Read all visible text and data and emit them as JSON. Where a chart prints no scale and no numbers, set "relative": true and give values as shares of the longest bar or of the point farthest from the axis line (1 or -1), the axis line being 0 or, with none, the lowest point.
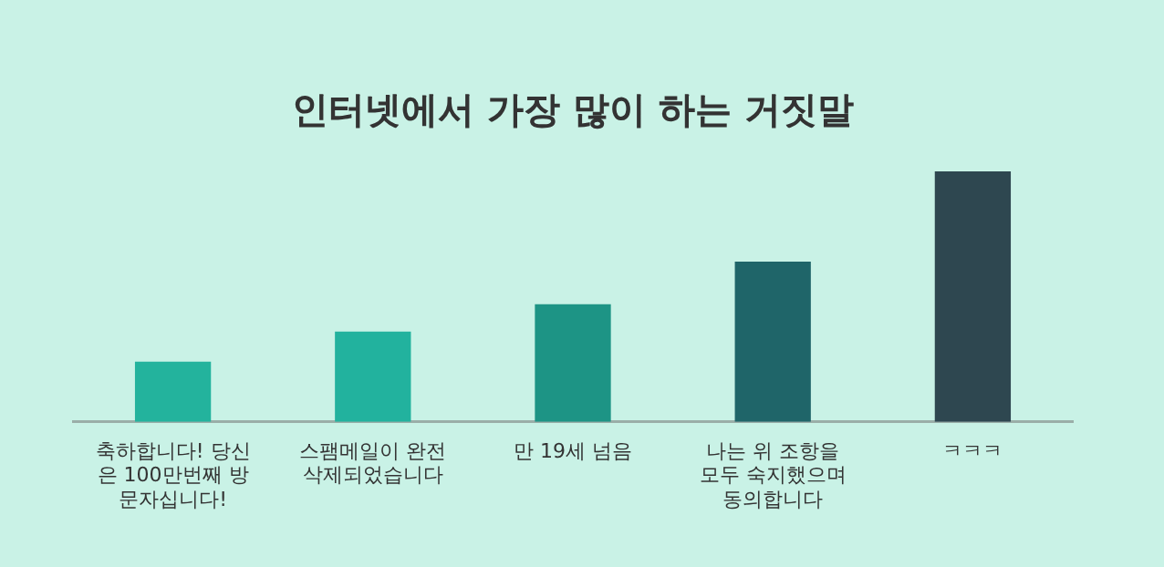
{
  "chart_data": {
    "type": "bar",
    "title": "인터넷에서 가장 많이 하는 거짓말",
    "relative": true,
    "categories": [
      "축하합니다! 당신은 100만번째 방문자십니다!",
      "스팸메일이 완전 삭제되었습니다",
      "만 19세 넘음",
      "나는 위 조항을 모두 숙지했으며 동의합니다",
      "ㅋㅋㅋ"
    ],
    "values": [
      0.24,
      0.36,
      0.47,
      0.64,
      1
    ],
    "colors": [
      "#23b39d",
      "#22b29e",
      "#1d9485",
      "#1f6569",
      "#2e4750"
    ],
    "grid": false,
    "legend": false
  }
}
